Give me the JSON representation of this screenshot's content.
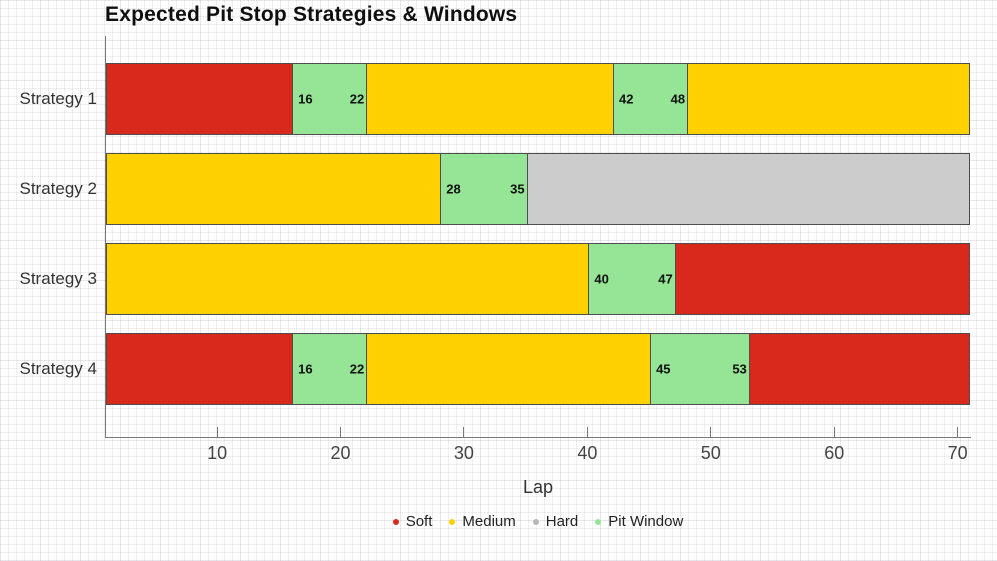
{
  "chart_data": {
    "type": "bar",
    "orientation": "horizontal",
    "stacked": true,
    "title": "Expected Pit Stop Strategies & Windows",
    "xlabel": "Lap",
    "xlim": [
      1,
      71
    ],
    "x_ticks": [
      "10",
      "20",
      "30",
      "40",
      "50",
      "60",
      "70"
    ],
    "grid": "fine graph-paper background",
    "categories": [
      "Strategy 1",
      "Strategy 2",
      "Strategy 3",
      "Strategy 4"
    ],
    "compound_colors": {
      "soft": "#d8291c",
      "medium": "#ffd100",
      "hard": "#cccccc",
      "pit_window": "#96e596"
    },
    "legend": {
      "position": "bottom",
      "entries": [
        {
          "label": "Soft",
          "color": "#d8291c"
        },
        {
          "label": "Medium",
          "color": "#ffd100"
        },
        {
          "label": "Hard",
          "color": "#b8b8b8"
        },
        {
          "label": "Pit Window",
          "color": "#96e596"
        }
      ]
    },
    "strategies": [
      {
        "category": "Strategy 1",
        "segments": [
          {
            "type": "soft",
            "start": 1,
            "end": 16
          },
          {
            "type": "pit_window",
            "start": 16,
            "end": 22,
            "labels": [
              "16",
              "22"
            ]
          },
          {
            "type": "medium",
            "start": 22,
            "end": 42
          },
          {
            "type": "pit_window",
            "start": 42,
            "end": 48,
            "labels": [
              "42",
              "48"
            ]
          },
          {
            "type": "medium",
            "start": 48,
            "end": 71
          }
        ]
      },
      {
        "category": "Strategy 2",
        "segments": [
          {
            "type": "medium",
            "start": 1,
            "end": 28
          },
          {
            "type": "pit_window",
            "start": 28,
            "end": 35,
            "labels": [
              "28",
              "35"
            ]
          },
          {
            "type": "hard",
            "start": 35,
            "end": 71
          }
        ]
      },
      {
        "category": "Strategy 3",
        "segments": [
          {
            "type": "medium",
            "start": 1,
            "end": 40
          },
          {
            "type": "pit_window",
            "start": 40,
            "end": 47,
            "labels": [
              "40",
              "47"
            ]
          },
          {
            "type": "soft",
            "start": 47,
            "end": 71
          }
        ]
      },
      {
        "category": "Strategy 4",
        "segments": [
          {
            "type": "soft",
            "start": 1,
            "end": 16
          },
          {
            "type": "pit_window",
            "start": 16,
            "end": 22,
            "labels": [
              "16",
              "22"
            ]
          },
          {
            "type": "medium",
            "start": 22,
            "end": 45
          },
          {
            "type": "pit_window",
            "start": 45,
            "end": 53,
            "labels": [
              "45",
              "53"
            ]
          },
          {
            "type": "soft",
            "start": 53,
            "end": 71
          }
        ]
      }
    ]
  }
}
